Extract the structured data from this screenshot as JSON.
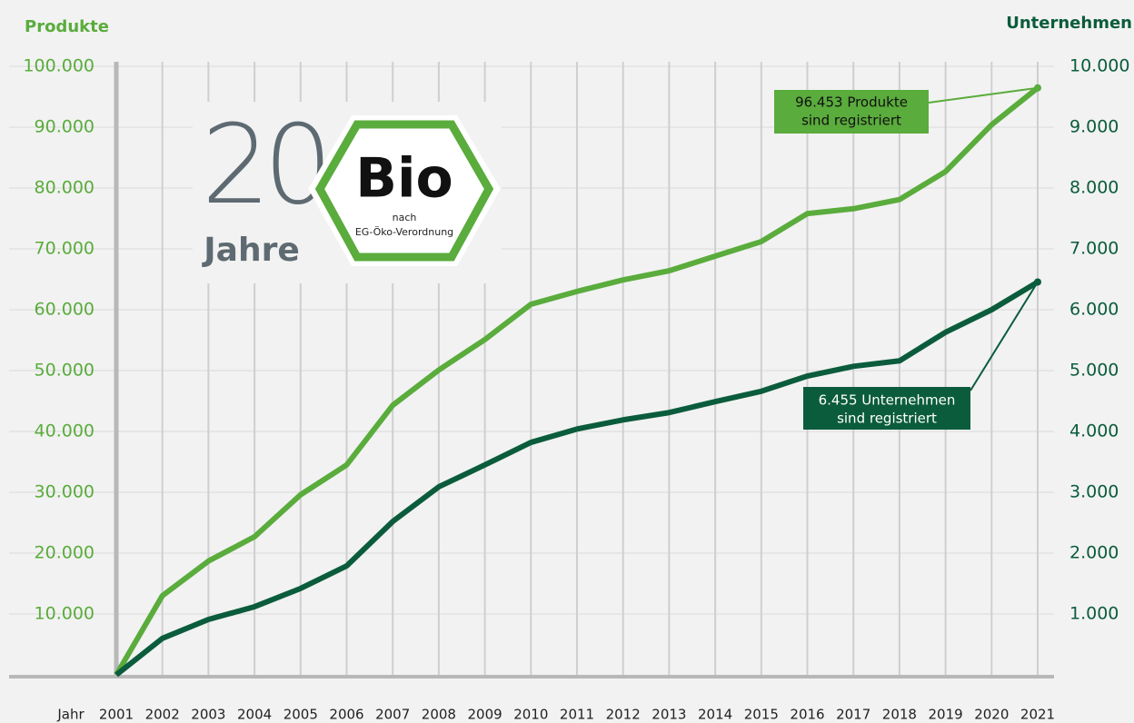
{
  "chart_data": {
    "type": "line",
    "y_label": "Produkte",
    "y2_label": "Unternehmen",
    "x_label": "Jahr",
    "categories": [
      "2001",
      "2002",
      "2003",
      "2004",
      "2005",
      "2006",
      "2007",
      "2008",
      "2009",
      "2010",
      "2011",
      "2012",
      "2013",
      "2014",
      "2015",
      "2016",
      "2017",
      "2018",
      "2019",
      "2020",
      "2021"
    ],
    "series": [
      {
        "name": "Produkte",
        "color": "#5aac3c",
        "values": [
          0,
          13000,
          18700,
          22700,
          29600,
          34500,
          44300,
          50100,
          55100,
          60900,
          63000,
          64900,
          66400,
          68800,
          71200,
          75800,
          76600,
          78100,
          82700,
          90400,
          96453
        ]
      },
      {
        "name": "Unternehmen",
        "color": "#0b5c3c",
        "axis": "y2",
        "values": [
          0,
          600,
          910,
          1120,
          1420,
          1790,
          2520,
          3090,
          3450,
          3820,
          4040,
          4190,
          4310,
          4490,
          4660,
          4910,
          5070,
          5160,
          5630,
          6000,
          6455
        ]
      }
    ],
    "ylim": [
      0,
      100000
    ],
    "yticks": [
      {
        "value": 10000,
        "label": "10.000"
      },
      {
        "value": 20000,
        "label": "20.000"
      },
      {
        "value": 30000,
        "label": "30.000"
      },
      {
        "value": 40000,
        "label": "40.000"
      },
      {
        "value": 50000,
        "label": "50.000"
      },
      {
        "value": 60000,
        "label": "60.000"
      },
      {
        "value": 70000,
        "label": "70.000"
      },
      {
        "value": 80000,
        "label": "80.000"
      },
      {
        "value": 90000,
        "label": "90.000"
      },
      {
        "value": 100000,
        "label": "100.000"
      }
    ],
    "y2lim": [
      0,
      10000
    ],
    "y2ticks": [
      {
        "value": 1000,
        "label": "1.000"
      },
      {
        "value": 2000,
        "label": "2.000"
      },
      {
        "value": 3000,
        "label": "3.000"
      },
      {
        "value": 4000,
        "label": "4.000"
      },
      {
        "value": 5000,
        "label": "5.000"
      },
      {
        "value": 6000,
        "label": "6.000"
      },
      {
        "value": 7000,
        "label": "7.000"
      },
      {
        "value": 8000,
        "label": "8.000"
      },
      {
        "value": 9000,
        "label": "9.000"
      },
      {
        "value": 10000,
        "label": "10.000"
      }
    ],
    "grid": true,
    "annotations": [
      {
        "lines": [
          "96.453 Produkte",
          "sind registriert"
        ]
      },
      {
        "lines": [
          "6.455 Unternehmen",
          "sind registriert"
        ]
      }
    ],
    "logo": {
      "number": "20",
      "years": "Jahre",
      "bio": "Bio",
      "line1": "nach",
      "line2": "EG-Öko-Verordnung"
    }
  }
}
